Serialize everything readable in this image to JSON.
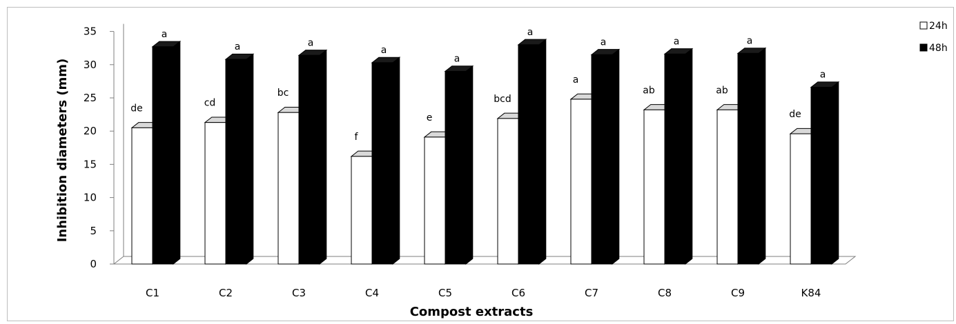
{
  "chart_data": {
    "type": "bar",
    "categories": [
      "C1",
      "C2",
      "C3",
      "C4",
      "C5",
      "C6",
      "C7",
      "C8",
      "C9",
      "K84"
    ],
    "series": [
      {
        "name": "24h",
        "values": [
          20.5,
          21.3,
          22.8,
          16.2,
          19.1,
          21.9,
          24.8,
          23.2,
          23.2,
          19.6
        ],
        "labels": [
          "de",
          "cd",
          "bc",
          "f",
          "e",
          "bcd",
          "a",
          "ab",
          "ab",
          "de"
        ],
        "color": "#ffffff"
      },
      {
        "name": "48h",
        "values": [
          32.7,
          30.8,
          31.4,
          30.3,
          29.0,
          33.0,
          31.5,
          31.6,
          31.7,
          26.6
        ],
        "labels": [
          "a",
          "a",
          "a",
          "a",
          "a",
          "a",
          "a",
          "a",
          "a",
          "a"
        ],
        "color": "#000000"
      }
    ],
    "title": "",
    "xlabel": "Compost extracts",
    "ylabel": "Inhibition diameters (mm)",
    "ylim": [
      0,
      35
    ],
    "yticks": [
      0,
      5,
      10,
      15,
      20,
      25,
      30,
      35
    ],
    "grid": false,
    "legend_position": "top-right"
  }
}
